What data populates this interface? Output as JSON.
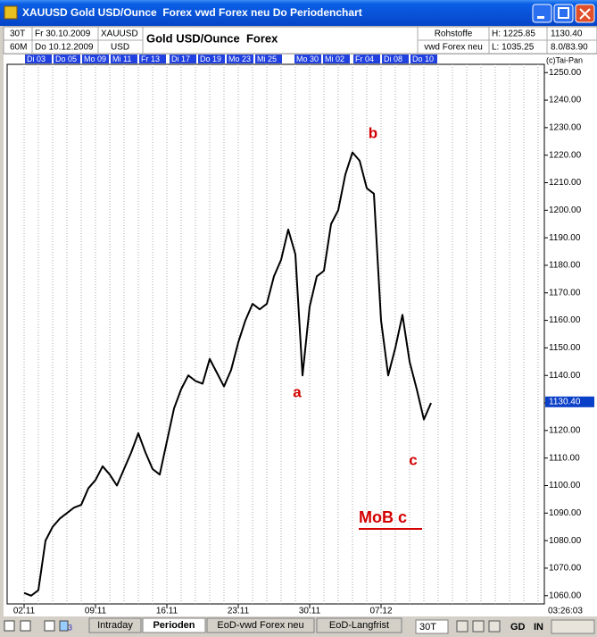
{
  "window": {
    "title": "XAUUSD Gold USD/Ounce  Forex vwd Forex neu Do Periodenchart"
  },
  "header": {
    "period": [
      "30T",
      "60M"
    ],
    "dates": [
      "Fr 30.10.2009",
      "Do 10.12.2009"
    ],
    "symbol": [
      "XAUUSD",
      "USD"
    ],
    "name": "Gold USD/Ounce  Forex",
    "market": [
      "Rohstoffe",
      "vwd Forex neu"
    ],
    "range": [
      "H: 1225.85",
      "L: 1035.25"
    ],
    "quote": [
      "1130.40",
      "8.0/83.90"
    ]
  },
  "date_strip": [
    "Di 03",
    "Do 05",
    "Mo 09",
    "Mi 11",
    "Fr 13",
    "Di 17",
    "Do 19",
    "Mo 23",
    "Mi 25",
    "Mo 30",
    "Mi 02",
    "Fr 04",
    "Di 08",
    "Do 10"
  ],
  "copyright": "(c)Tai-Pan",
  "clock": "03:26:03",
  "chart_data": {
    "type": "line",
    "color": "#000000",
    "categories": [
      "02.11",
      null,
      null,
      null,
      null,
      null,
      null,
      null,
      null,
      null,
      "09.11",
      null,
      null,
      null,
      null,
      null,
      null,
      null,
      null,
      null,
      "16.11",
      null,
      null,
      null,
      null,
      null,
      null,
      null,
      null,
      null,
      "23.11",
      null,
      null,
      null,
      null,
      null,
      null,
      null,
      null,
      null,
      "30.11",
      null,
      null,
      null,
      null,
      null,
      null,
      null,
      null,
      null,
      "07.12",
      null,
      null,
      null,
      null,
      null,
      null,
      null
    ],
    "values": [
      1061,
      1060,
      1062,
      1080,
      1085,
      1088,
      1090,
      1092,
      1093,
      1099,
      1102,
      1107,
      1104,
      1100,
      1106,
      1112,
      1119,
      1112,
      1106,
      1104,
      1116,
      1128,
      1135,
      1140,
      1138,
      1137,
      1146,
      1141,
      1136,
      1142,
      1152,
      1160,
      1166,
      1164,
      1166,
      1176,
      1182,
      1193,
      1184,
      1140,
      1165,
      1176,
      1178,
      1195,
      1200,
      1213,
      1221,
      1218,
      1208,
      1206,
      1160,
      1140,
      1150,
      1162,
      1145,
      1135,
      1124,
      1130
    ],
    "ylim": [
      1057,
      1253
    ],
    "yticks": [
      {
        "value": 1060,
        "label": "1060.00"
      },
      {
        "value": 1070,
        "label": "1070.00"
      },
      {
        "value": 1080,
        "label": "1080.00"
      },
      {
        "value": 1090,
        "label": "1090.00"
      },
      {
        "value": 1100,
        "label": "1100.00"
      },
      {
        "value": 1110,
        "label": "1110.00"
      },
      {
        "value": 1120,
        "label": "1120.00"
      },
      {
        "value": 1130,
        "label": "1130.00"
      },
      {
        "value": 1140,
        "label": "1140.00"
      },
      {
        "value": 1150,
        "label": "1150.00"
      },
      {
        "value": 1160,
        "label": "1160.00"
      },
      {
        "value": 1170,
        "label": "1170.00"
      },
      {
        "value": 1180,
        "label": "1180.00"
      },
      {
        "value": 1190,
        "label": "1190.00"
      },
      {
        "value": 1200,
        "label": "1200.00"
      },
      {
        "value": 1210,
        "label": "1210.00"
      },
      {
        "value": 1220,
        "label": "1220.00"
      },
      {
        "value": 1230,
        "label": "1230.00"
      },
      {
        "value": 1240,
        "label": "1240.00"
      },
      {
        "value": 1250,
        "label": "1250.00"
      }
    ],
    "last_value": {
      "value": 1130.4,
      "label": "1130.40"
    },
    "annotations": [
      "a",
      "b",
      "c",
      "MoB c"
    ],
    "annotation_color": "#d40000"
  },
  "toolbar": {
    "page_number": "3",
    "tabs": [
      "Intraday",
      "Perioden",
      "EoD-vwd Forex neu",
      "EoD-Langfrist"
    ],
    "interval": "30T",
    "buttons": [
      "GD",
      "IN"
    ]
  }
}
